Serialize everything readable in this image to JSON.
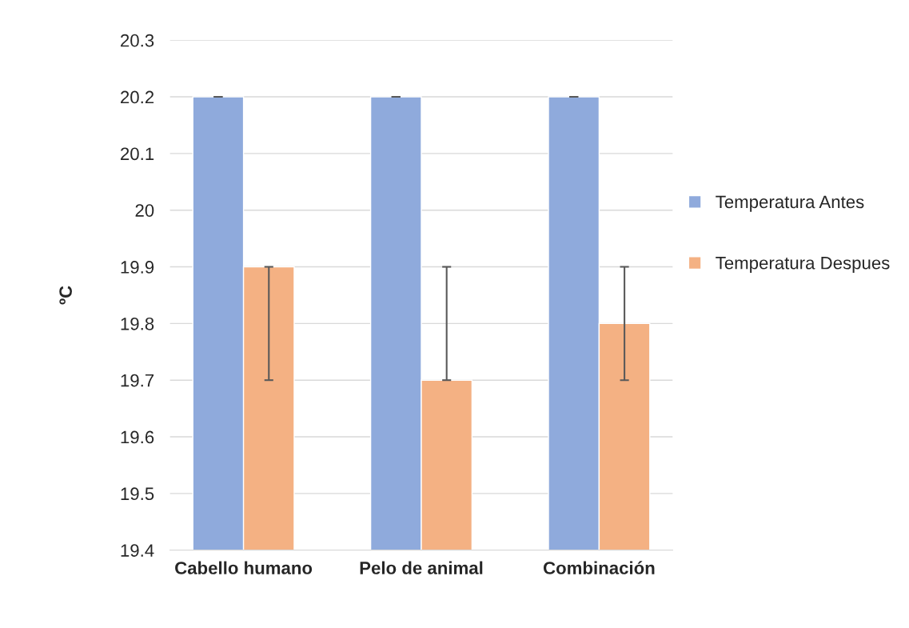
{
  "chart_data": {
    "type": "bar",
    "ylabel": "ºC",
    "categories": [
      "Cabello humano",
      "Pelo de animal",
      "Combinación"
    ],
    "series": [
      {
        "name": "Temperatura Antes",
        "color": "#8faadc",
        "values": [
          20.2,
          20.2,
          20.2
        ],
        "errors": [
          0,
          0,
          0
        ]
      },
      {
        "name": "Temperatura Despues",
        "color": "#f4b183",
        "values": [
          19.9,
          19.7,
          19.8
        ],
        "errors": [
          [
            19.7,
            19.9
          ],
          [
            19.7,
            19.9
          ],
          [
            19.7,
            19.9
          ]
        ]
      }
    ],
    "ylim": [
      19.4,
      20.3
    ],
    "yticks": [
      19.4,
      19.5,
      19.6,
      19.7,
      19.8,
      19.9,
      20,
      20.1,
      20.2,
      20.3
    ],
    "grid": "y",
    "legend": "right"
  }
}
